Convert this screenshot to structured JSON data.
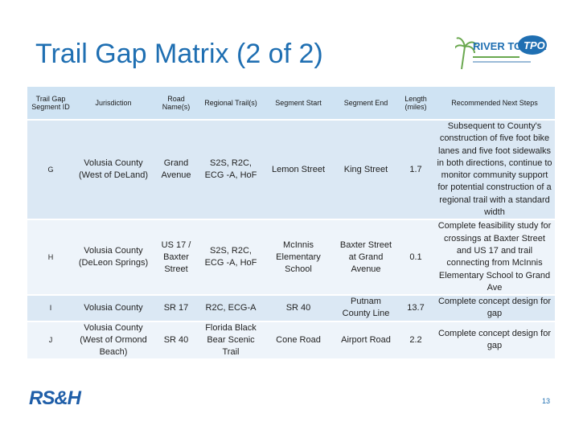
{
  "slide": {
    "title": "Trail Gap Matrix (2 of 2)",
    "page_number": "13",
    "footer_brand": "RS&H"
  },
  "logo": {
    "name": "RIVER TO SEA",
    "badge": "TPO",
    "colors": {
      "primary": "#1f6fb2",
      "accent": "#6aa84f"
    }
  },
  "table": {
    "headers": {
      "segment_id": "Trail Gap Segment ID",
      "jurisdiction": "Jurisdiction",
      "road_names": "Road Name(s)",
      "regional_trails": "Regional Trail(s)",
      "segment_start": "Segment Start",
      "segment_end": "Segment End",
      "length": "Length (miles)",
      "next_steps": "Recommended Next Steps"
    },
    "rows": [
      {
        "segment_id": "G",
        "jurisdiction": "Volusia County (West of DeLand)",
        "road_names": "Grand Avenue",
        "regional_trails": "S2S, R2C, ECG -A, HoF",
        "segment_start": "Lemon Street",
        "segment_end": "King Street",
        "length": "1.7",
        "next_steps": "Subsequent to County's construction of five foot bike lanes and five foot sidewalks in both directions, continue to monitor community support for potential construction of a regional trail with a standard width"
      },
      {
        "segment_id": "H",
        "jurisdiction": "Volusia County (DeLeon Springs)",
        "road_names": "US 17 / Baxter Street",
        "regional_trails": "S2S, R2C, ECG -A, HoF",
        "segment_start": "McInnis Elementary School",
        "segment_end": "Baxter Street at Grand Avenue",
        "length": "0.1",
        "next_steps": "Complete feasibility study for crossings at Baxter Street and US 17 and trail connecting from McInnis Elementary School to Grand Ave"
      },
      {
        "segment_id": "I",
        "jurisdiction": "Volusia County",
        "road_names": "SR 17",
        "regional_trails": "R2C, ECG-A",
        "segment_start": "SR 40",
        "segment_end": "Putnam County Line",
        "length": "13.7",
        "next_steps": "Complete concept design for gap"
      },
      {
        "segment_id": "J",
        "jurisdiction": "Volusia County (West of Ormond Beach)",
        "road_names": "SR 40",
        "regional_trails": "Florida Black Bear Scenic Trail",
        "segment_start": "Cone Road",
        "segment_end": "Airport Road",
        "length": "2.2",
        "next_steps": "Complete concept design for gap"
      }
    ]
  }
}
